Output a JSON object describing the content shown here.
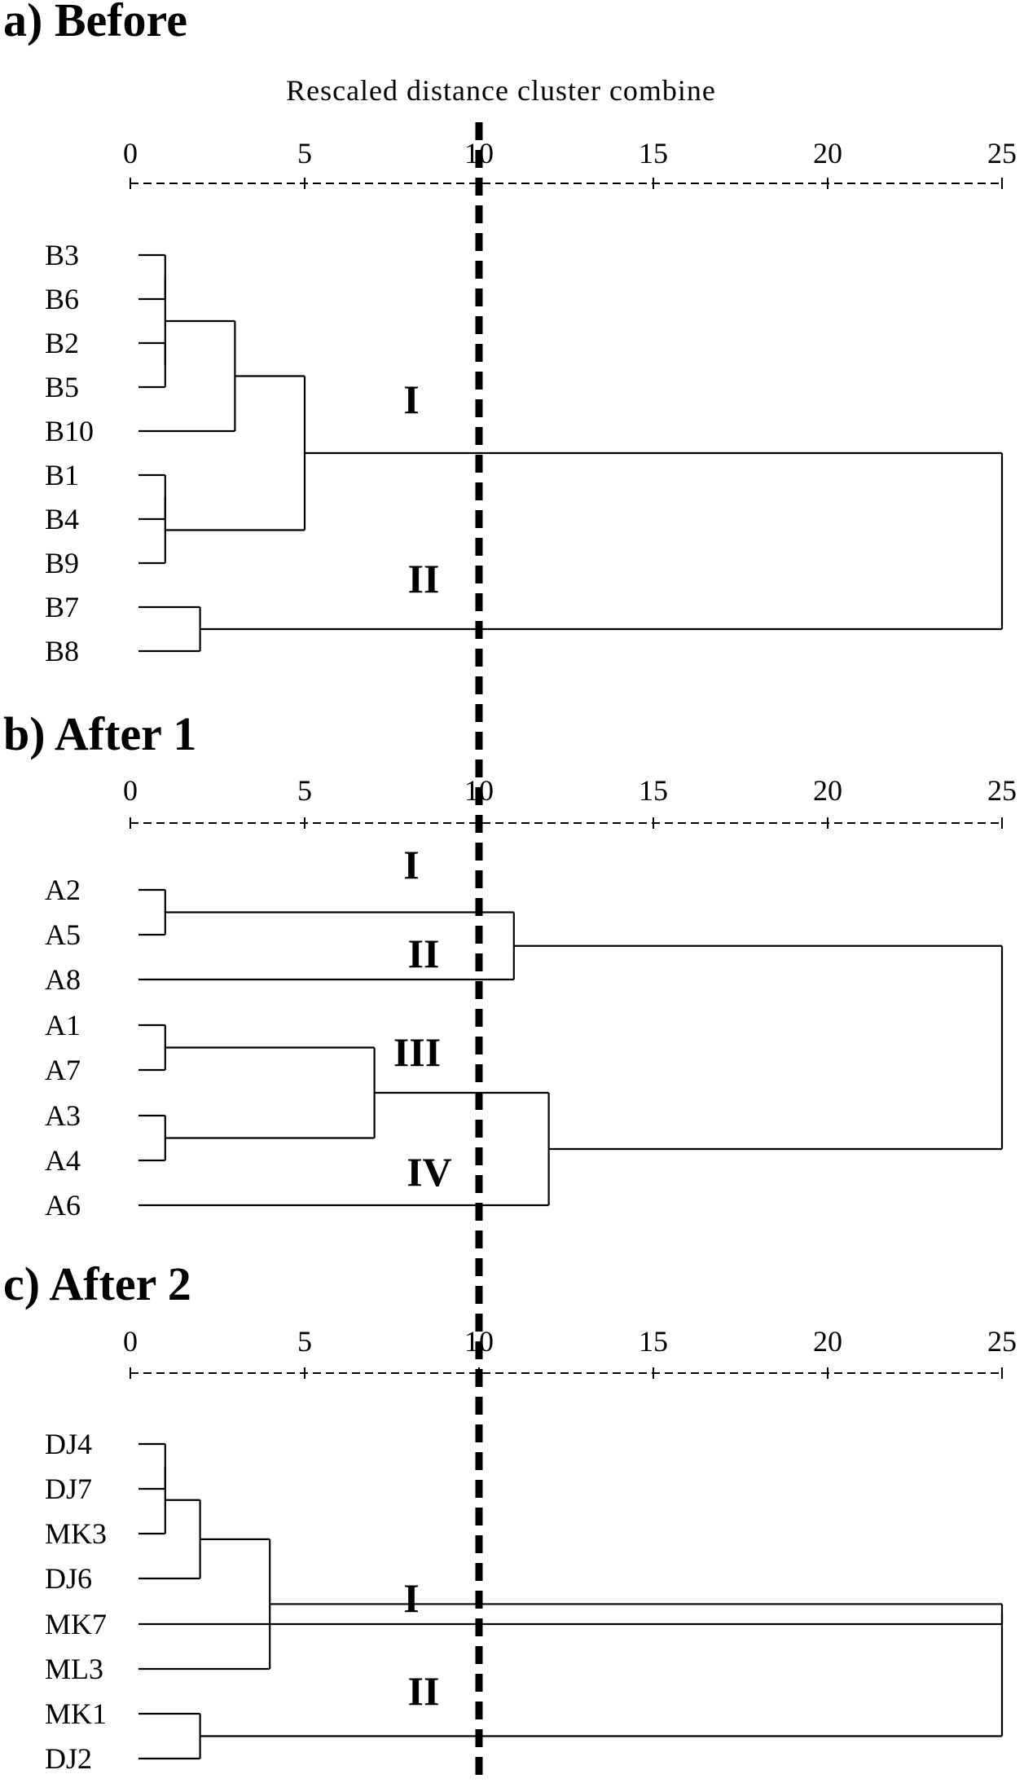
{
  "figure": {
    "axis_label": "Rescaled distance cluster combine",
    "cutoff_value": 10,
    "panels": [
      {
        "title": "a) Before",
        "ticks": [
          "0",
          "5",
          "10",
          "15",
          "20",
          "25"
        ],
        "leaves": [
          "B3",
          "B6",
          "B2",
          "B5",
          "B10",
          "B1",
          "B4",
          "B9",
          "B7",
          "B8"
        ],
        "merges": [
          {
            "a": 0,
            "b": 1,
            "h": 1
          },
          {
            "a": 2,
            "b": 3,
            "h": 1
          },
          {
            "a": 10,
            "b": 11,
            "h": 1
          },
          {
            "a": 12,
            "b": 4,
            "h": 3
          },
          {
            "a": 5,
            "b": 6,
            "h": 1
          },
          {
            "a": 14,
            "b": 7,
            "h": 1
          },
          {
            "a": 13,
            "b": 15,
            "h": 5
          },
          {
            "a": 8,
            "b": 9,
            "h": 2
          },
          {
            "a": 16,
            "b": 17,
            "h": 25
          }
        ],
        "cluster_labels": [
          "I",
          "II"
        ]
      },
      {
        "title": "b) After 1",
        "ticks": [
          "0",
          "5",
          "10",
          "15",
          "20",
          "25"
        ],
        "leaves": [
          "A2",
          "A5",
          "A8",
          "A1",
          "A7",
          "A3",
          "A4",
          "A6"
        ],
        "merges": [
          {
            "a": 0,
            "b": 1,
            "h": 1
          },
          {
            "a": 8,
            "b": 2,
            "h": 11
          },
          {
            "a": 3,
            "b": 4,
            "h": 1
          },
          {
            "a": 5,
            "b": 6,
            "h": 1
          },
          {
            "a": 10,
            "b": 11,
            "h": 7
          },
          {
            "a": 12,
            "b": 7,
            "h": 12
          },
          {
            "a": 9,
            "b": 13,
            "h": 25
          }
        ],
        "cluster_labels": [
          "I",
          "II",
          "III",
          "IV"
        ]
      },
      {
        "title": "c) After 2",
        "ticks": [
          "0",
          "5",
          "10",
          "15",
          "20",
          "25"
        ],
        "leaves": [
          "DJ4",
          "DJ7",
          "MK3",
          "DJ6",
          "MK7",
          "ML3",
          "MK1",
          "DJ2"
        ],
        "merges": [
          {
            "a": 0,
            "b": 1,
            "h": 1
          },
          {
            "a": 8,
            "b": 2,
            "h": 1
          },
          {
            "a": 9,
            "b": 3,
            "h": 2
          },
          {
            "a": 10,
            "b": 5,
            "h": 4
          },
          {
            "a": 6,
            "b": 7,
            "h": 2
          },
          {
            "a": 11,
            "b": 4,
            "h": 25
          },
          {
            "a": 13,
            "b": 12,
            "h": 25
          }
        ],
        "cluster_labels": [
          "I",
          "II"
        ]
      }
    ]
  }
}
